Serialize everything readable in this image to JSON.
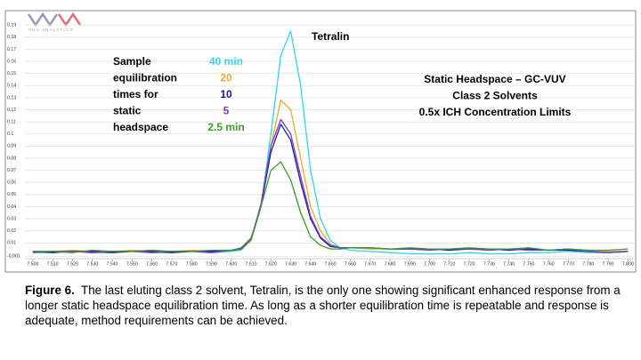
{
  "chart_data": {
    "type": "line",
    "logo_text": "VUV ANALYTICS",
    "legend_title": [
      "Sample",
      "equilibration",
      "times for",
      "static",
      "headspace"
    ],
    "annotations": {
      "peak": "Tetralin",
      "box": [
        "Static Headspace – GC-VUV",
        "Class 2 Solvents",
        "0.5x ICH Concentration Limits"
      ]
    },
    "x": [
      7.5,
      7.51,
      7.52,
      7.53,
      7.54,
      7.55,
      7.56,
      7.57,
      7.58,
      7.59,
      7.6,
      7.605,
      7.61,
      7.615,
      7.62,
      7.625,
      7.63,
      7.635,
      7.64,
      7.645,
      7.65,
      7.655,
      7.66,
      7.67,
      7.68,
      7.69,
      7.7,
      7.71,
      7.72,
      7.73,
      7.74,
      7.75,
      7.76,
      7.77,
      7.78,
      7.79,
      7.8
    ],
    "series": [
      {
        "name": "40 min",
        "color": "#33d6e8",
        "values": [
          0.002,
          0.002,
          0.003,
          0.002,
          0.002,
          0.003,
          0.002,
          0.002,
          0.003,
          0.002,
          0.003,
          0.004,
          0.012,
          0.04,
          0.1,
          0.165,
          0.185,
          0.14,
          0.07,
          0.03,
          0.012,
          0.006,
          0.004,
          0.003,
          0.002,
          0.001,
          0.001,
          0.001,
          0.002,
          0.001,
          0.001,
          0.002,
          0.002,
          0.003,
          0.002,
          0.002,
          0.003
        ]
      },
      {
        "name": "20",
        "color": "#f0a830",
        "values": [
          0.003,
          0.003,
          0.004,
          0.003,
          0.003,
          0.004,
          0.003,
          0.003,
          0.004,
          0.003,
          0.004,
          0.005,
          0.012,
          0.04,
          0.09,
          0.128,
          0.12,
          0.08,
          0.04,
          0.02,
          0.009,
          0.006,
          0.006,
          0.005,
          0.005,
          0.005,
          0.004,
          0.005,
          0.005,
          0.004,
          0.005,
          0.005,
          0.004,
          0.005,
          0.004,
          0.003,
          0.003
        ]
      },
      {
        "name": "10",
        "color": "#1a1a9c",
        "values": [
          0.003,
          0.002,
          0.003,
          0.003,
          0.002,
          0.003,
          0.003,
          0.002,
          0.003,
          0.003,
          0.004,
          0.005,
          0.013,
          0.04,
          0.085,
          0.108,
          0.095,
          0.06,
          0.03,
          0.014,
          0.007,
          0.006,
          0.006,
          0.006,
          0.005,
          0.005,
          0.005,
          0.004,
          0.005,
          0.005,
          0.004,
          0.005,
          0.004,
          0.004,
          0.003,
          0.002,
          0.003
        ]
      },
      {
        "name": "5",
        "color": "#7a3cc8",
        "values": [
          0.002,
          0.003,
          0.003,
          0.002,
          0.003,
          0.003,
          0.002,
          0.003,
          0.003,
          0.002,
          0.004,
          0.005,
          0.013,
          0.042,
          0.09,
          0.112,
          0.1,
          0.065,
          0.032,
          0.015,
          0.008,
          0.006,
          0.006,
          0.006,
          0.005,
          0.005,
          0.004,
          0.005,
          0.005,
          0.004,
          0.005,
          0.004,
          0.004,
          0.005,
          0.003,
          0.002,
          0.003
        ]
      },
      {
        "name": "2.5 min",
        "color": "#3a9a2a",
        "values": [
          0.003,
          0.003,
          0.002,
          0.004,
          0.003,
          0.003,
          0.004,
          0.003,
          0.003,
          0.004,
          0.004,
          0.006,
          0.014,
          0.04,
          0.07,
          0.077,
          0.062,
          0.035,
          0.015,
          0.008,
          0.005,
          0.005,
          0.006,
          0.006,
          0.005,
          0.006,
          0.005,
          0.005,
          0.006,
          0.005,
          0.005,
          0.006,
          0.004,
          0.005,
          0.004,
          0.004,
          0.005
        ]
      }
    ],
    "xlim": [
      7.496,
      7.803
    ],
    "xticks": [
      {
        "value": 7.5,
        "label": "7.500"
      },
      {
        "value": 7.51,
        "label": "7.510"
      },
      {
        "value": 7.52,
        "label": "7.520"
      },
      {
        "value": 7.53,
        "label": "7.530"
      },
      {
        "value": 7.54,
        "label": "7.540"
      },
      {
        "value": 7.55,
        "label": "7.550"
      },
      {
        "value": 7.56,
        "label": "7.560"
      },
      {
        "value": 7.57,
        "label": "7.570"
      },
      {
        "value": 7.58,
        "label": "7.580"
      },
      {
        "value": 7.59,
        "label": "7.590"
      },
      {
        "value": 7.6,
        "label": "7.600"
      },
      {
        "value": 7.61,
        "label": "7.610"
      },
      {
        "value": 7.62,
        "label": "7.620"
      },
      {
        "value": 7.63,
        "label": "7.630"
      },
      {
        "value": 7.64,
        "label": "7.640"
      },
      {
        "value": 7.65,
        "label": "7.650"
      },
      {
        "value": 7.66,
        "label": "7.660"
      },
      {
        "value": 7.67,
        "label": "7.670"
      },
      {
        "value": 7.68,
        "label": "7.680"
      },
      {
        "value": 7.69,
        "label": "7.690"
      },
      {
        "value": 7.7,
        "label": "7.700"
      },
      {
        "value": 7.71,
        "label": "7.710"
      },
      {
        "value": 7.72,
        "label": "7.720"
      },
      {
        "value": 7.73,
        "label": "7.730"
      },
      {
        "value": 7.74,
        "label": "7.740"
      },
      {
        "value": 7.75,
        "label": "7.750"
      },
      {
        "value": 7.76,
        "label": "7.760"
      },
      {
        "value": 7.77,
        "label": "7.770"
      },
      {
        "value": 7.78,
        "label": "7.780"
      },
      {
        "value": 7.79,
        "label": "7.790"
      },
      {
        "value": 7.8,
        "label": "7.800"
      }
    ],
    "ylim": [
      -0.003,
      0.196
    ],
    "yticks": [
      0.19,
      0.18,
      0.17,
      0.16,
      0.15,
      0.14,
      0.13,
      0.12,
      0.11,
      0.1,
      0.09,
      0.08,
      0.07,
      0.06,
      0.05,
      0.04,
      0.03,
      0.02,
      0.01,
      -0.001
    ],
    "grid": true
  },
  "caption": {
    "label": "Figure 6.",
    "text": "The last eluting class 2 solvent, Tetralin, is the only one showing significant enhanced response from a longer static headspace equilibration time.  As long as a shorter equilibration time is repeatable and response is adequate, method requirements can be achieved."
  }
}
